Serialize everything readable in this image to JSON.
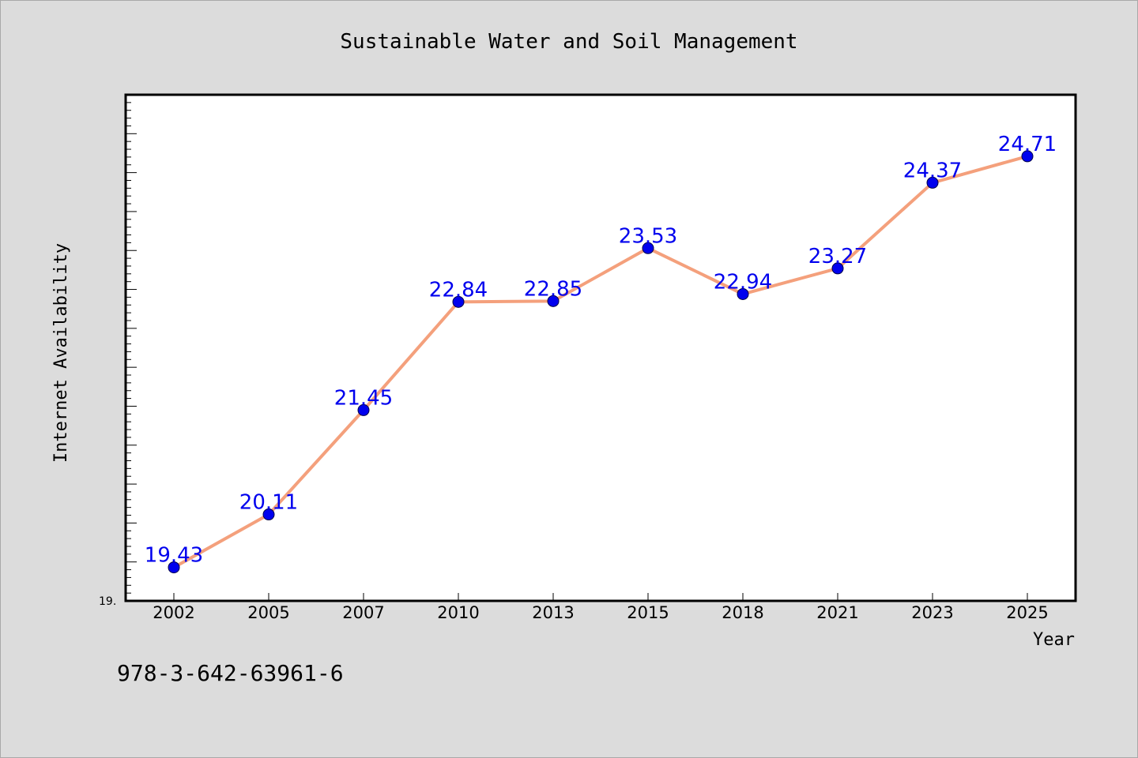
{
  "chart_data": {
    "type": "line",
    "title": "Sustainable Water and Soil Management",
    "xlabel": "Year",
    "ylabel": "Internet Availability",
    "categories": [
      "2002",
      "2005",
      "2007",
      "2010",
      "2013",
      "2015",
      "2018",
      "2021",
      "2023",
      "2025"
    ],
    "series": [
      {
        "values": [
          19.43,
          20.11,
          21.45,
          22.84,
          22.85,
          23.53,
          22.94,
          23.27,
          24.37,
          24.71
        ]
      }
    ],
    "data_labels": [
      "19.43",
      "20.11",
      "21.45",
      "22.84",
      "22.85",
      "23.53",
      "22.94",
      "23.27",
      "24.37",
      "24.71"
    ],
    "ylim": [
      19.0,
      25.5
    ],
    "y_tick_label": "19.",
    "grid": false,
    "legend": "none",
    "colors": {
      "line": "#f4a07c",
      "marker": "#0000ee",
      "data_label": "#0000ee",
      "plot_background": "#ffffff",
      "page_background": "#dcdcdc"
    }
  },
  "footer": {
    "isbn": "978-3-642-63961-6"
  }
}
